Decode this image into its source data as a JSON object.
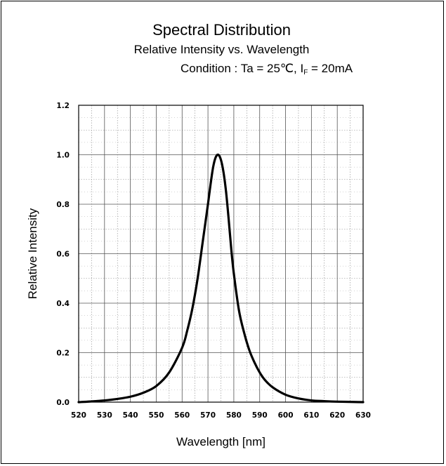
{
  "title": "Spectral Distribution",
  "subtitle": "Relative Intensity vs. Wavelength",
  "condition": {
    "prefix": "Condition : Ta = 25℃, I",
    "subscript": "F",
    "suffix": " = 20mA"
  },
  "chart_data": {
    "type": "line",
    "xlabel": "Wavelength [nm]",
    "ylabel": "Relative Intensity",
    "xlim": [
      520,
      630
    ],
    "ylim": [
      0,
      1.2
    ],
    "xticks": [
      "520",
      "530",
      "540",
      "550",
      "560",
      "570",
      "580",
      "590",
      "600",
      "610",
      "620",
      "630"
    ],
    "yticks": [
      "0.0",
      "0.2",
      "0.4",
      "0.6",
      "0.8",
      "1.0",
      "1.2"
    ],
    "grid": true,
    "series": [
      {
        "color": "#000000",
        "x": [
          520,
          525,
          530,
          535,
          540,
          545,
          550,
          555,
          560,
          562,
          564,
          566,
          568,
          570,
          571,
          572,
          573,
          574,
          575,
          576,
          577,
          578,
          579,
          580,
          582,
          584,
          586,
          588,
          590,
          592,
          595,
          600,
          605,
          610,
          615,
          620,
          630
        ],
        "y": [
          0.0,
          0.003,
          0.007,
          0.013,
          0.022,
          0.038,
          0.065,
          0.12,
          0.22,
          0.29,
          0.38,
          0.5,
          0.65,
          0.8,
          0.88,
          0.95,
          0.99,
          1.0,
          0.98,
          0.93,
          0.85,
          0.74,
          0.62,
          0.52,
          0.37,
          0.28,
          0.21,
          0.16,
          0.12,
          0.09,
          0.06,
          0.03,
          0.015,
          0.007,
          0.004,
          0.002,
          0.0
        ]
      }
    ]
  }
}
